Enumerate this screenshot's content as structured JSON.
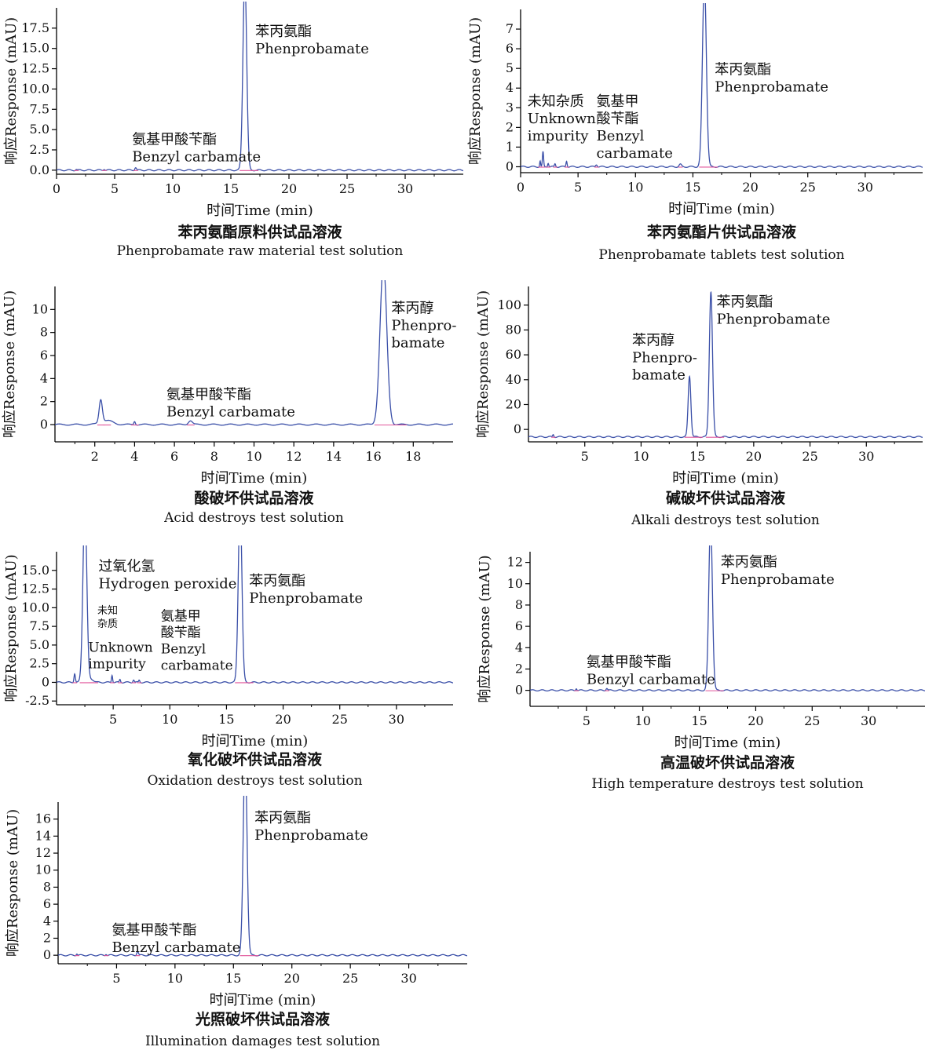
{
  "chart_data": [
    {
      "type": "line",
      "title": "苯丙氨酯原料供试品溶液",
      "subtitle": "Phenprobamate raw material test solution",
      "xlabel": "时间Time (min)",
      "ylabel": "响应Response (mAU)",
      "xlim": [
        0,
        35
      ],
      "ylim": [
        -0.5,
        20
      ],
      "xticks": [
        0,
        5,
        10,
        15,
        20,
        25,
        30
      ],
      "xtick_labels": [
        "0",
        "5",
        "10",
        "15",
        "20",
        "25",
        "30"
      ],
      "yticks": [
        0,
        2.5,
        5,
        7.5,
        10,
        12.5,
        15,
        17.5
      ],
      "ytick_labels": [
        "0.0",
        "2.5",
        "5.0",
        "7.5",
        "10.0",
        "12.5",
        "15.0",
        "17.5"
      ],
      "baseline": 0,
      "peaks": [
        {
          "rt": 1.7,
          "height": 0.1,
          "width": 0.05
        },
        {
          "rt": 4.1,
          "height": 0.15,
          "width": 0.06
        },
        {
          "rt": 6.8,
          "height": 0.35,
          "width": 0.07
        },
        {
          "rt": 16.2,
          "height": 24,
          "width": 0.16
        }
      ],
      "annotations": [
        {
          "x": 6.5,
          "y": 3.2,
          "lines": [
            "氨基甲酸苄酯",
            "Benzyl carbamate"
          ]
        },
        {
          "x": 17.1,
          "y": 16.5,
          "lines": [
            "苯丙氨酯",
            "Phenprobamate"
          ]
        }
      ]
    },
    {
      "type": "line",
      "title": "苯丙氨酯片供试品溶液",
      "subtitle": "Phenprobamate tablets test solution",
      "xlabel": "时间Time (min)",
      "ylabel": "响应Response (mAU)",
      "xlim": [
        0,
        35
      ],
      "ylim": [
        -0.3,
        8
      ],
      "xticks": [
        0,
        5,
        10,
        15,
        20,
        25,
        30
      ],
      "xtick_labels": [
        "0",
        "5",
        "10",
        "15",
        "20",
        "25",
        "30"
      ],
      "yticks": [
        0,
        1,
        2,
        3,
        4,
        5,
        6,
        7
      ],
      "ytick_labels": [
        "0",
        "1",
        "2",
        "3",
        "4",
        "5",
        "6",
        "7"
      ],
      "baseline": 0,
      "peaks": [
        {
          "rt": 1.7,
          "height": 0.3,
          "width": 0.04
        },
        {
          "rt": 1.95,
          "height": 0.75,
          "width": 0.05
        },
        {
          "rt": 2.4,
          "height": 0.2,
          "width": 0.05
        },
        {
          "rt": 3.0,
          "height": 0.15,
          "width": 0.05
        },
        {
          "rt": 4.0,
          "height": 0.3,
          "width": 0.05
        },
        {
          "rt": 6.6,
          "height": 0.12,
          "width": 0.07
        },
        {
          "rt": 13.9,
          "height": 0.12,
          "width": 0.1
        },
        {
          "rt": 16.0,
          "height": 9.5,
          "width": 0.17
        }
      ],
      "annotations": [
        {
          "x": 0.6,
          "y": 3.1,
          "lines": [
            "未知杂质",
            "Unknown",
            "impurity"
          ]
        },
        {
          "x": 6.6,
          "y": 3.1,
          "lines": [
            "氨基甲",
            "酸苄酯",
            "Benzyl",
            "carbamate"
          ]
        },
        {
          "x": 16.9,
          "y": 4.7,
          "lines": [
            "苯丙氨酯",
            "Phenprobamate"
          ]
        }
      ]
    },
    {
      "type": "line",
      "title": "酸破坏供试品溶液",
      "subtitle": "Acid destroys test solution",
      "xlabel": "时间Time (min)",
      "ylabel": "响应Response (mAU)",
      "xlim": [
        0,
        20
      ],
      "ylim": [
        -1.5,
        12
      ],
      "xticks": [
        2,
        4,
        6,
        8,
        10,
        12,
        14,
        16,
        18
      ],
      "xtick_labels": [
        "2",
        "4",
        "6",
        "8",
        "10",
        "12",
        "14",
        "16",
        "18"
      ],
      "yticks": [
        0,
        2,
        4,
        6,
        8,
        10
      ],
      "ytick_labels": [
        "0",
        "2",
        "4",
        "6",
        "8",
        "10"
      ],
      "baseline": 0,
      "peaks": [
        {
          "rt": 2.3,
          "height": 2.0,
          "width": 0.08
        },
        {
          "rt": 2.6,
          "height": 0.35,
          "width": 0.3
        },
        {
          "rt": 4.0,
          "height": 0.3,
          "width": 0.04
        },
        {
          "rt": 6.8,
          "height": 0.35,
          "width": 0.1
        },
        {
          "rt": 16.5,
          "height": 14,
          "width": 0.17
        }
      ],
      "annotations": [
        {
          "x": 5.6,
          "y": 2.2,
          "lines": [
            "氨基甲酸苄酯",
            "Benzyl carbamate"
          ]
        },
        {
          "x": 16.9,
          "y": 9.7,
          "lines": [
            "苯丙醇",
            "Phenpro-",
            "bamate"
          ]
        }
      ]
    },
    {
      "type": "line",
      "title": "碱破坏供试品溶液",
      "subtitle": "Alkali destroys  test solution",
      "xlabel": "时间Time (min)",
      "ylabel": "响应Response (mAU)",
      "xlim": [
        0,
        35
      ],
      "ylim": [
        -10,
        115
      ],
      "xticks": [
        5,
        10,
        15,
        20,
        25,
        30
      ],
      "xtick_labels": [
        "5",
        "10",
        "15",
        "20",
        "25",
        "30"
      ],
      "yticks": [
        0,
        20,
        40,
        60,
        80,
        100
      ],
      "ytick_labels": [
        "0",
        "20",
        "40",
        "60",
        "80",
        "100"
      ],
      "baseline": -6,
      "peaks": [
        {
          "rt": 2.2,
          "height": 2.0,
          "width": 0.05
        },
        {
          "rt": 14.3,
          "height": 49,
          "width": 0.12
        },
        {
          "rt": 16.2,
          "height": 117,
          "width": 0.14
        }
      ],
      "annotations": [
        {
          "x": 9.2,
          "y": 68,
          "lines": [
            "苯丙醇",
            "Phenpro-",
            "bamate"
          ]
        },
        {
          "x": 16.7,
          "y": 99,
          "lines": [
            "苯丙氨酯",
            "Phenprobamate"
          ]
        }
      ]
    },
    {
      "type": "line",
      "title": "氧化破坏供试品溶液",
      "subtitle": "Oxidation destroys  test solution",
      "xlabel": "时间Time (min)",
      "ylabel": "响应Response (mAU)",
      "xlim": [
        0,
        35
      ],
      "ylim": [
        -3,
        17.5
      ],
      "xticks": [
        5,
        10,
        15,
        20,
        25,
        30
      ],
      "xtick_labels": [
        "5",
        "10",
        "15",
        "20",
        "25",
        "30"
      ],
      "yticks": [
        -2.5,
        0,
        2.5,
        5,
        7.5,
        10,
        12.5,
        15
      ],
      "ytick_labels": [
        "-2.5",
        "0",
        "2.5",
        "5.0",
        "7.5",
        "10.0",
        "12.5",
        "15.0"
      ],
      "baseline": 0,
      "peaks": [
        {
          "rt": 1.6,
          "height": 1.2,
          "width": 0.06
        },
        {
          "rt": 2.5,
          "height": 24,
          "width": 0.17
        },
        {
          "rt": 3.1,
          "height": 0.4,
          "width": 0.2
        },
        {
          "rt": 4.9,
          "height": 1.0,
          "width": 0.05
        },
        {
          "rt": 5.6,
          "height": 0.4,
          "width": 0.05
        },
        {
          "rt": 6.8,
          "height": 0.35,
          "width": 0.06
        },
        {
          "rt": 7.3,
          "height": 0.3,
          "width": 0.05
        },
        {
          "rt": 16.2,
          "height": 24,
          "width": 0.16
        }
      ],
      "annotations": [
        {
          "x": 3.7,
          "y": 14.9,
          "lines": [
            "过氧化氢",
            "Hydrogen peroxide"
          ],
          "size": 18
        },
        {
          "x": 3.6,
          "y": 9.2,
          "lines": [
            "未知",
            "杂质"
          ],
          "size": 13
        },
        {
          "x": 2.8,
          "y": 4.1,
          "lines": [
            "Unknown",
            "impurity"
          ],
          "size": 17
        },
        {
          "x": 9.2,
          "y": 8.3,
          "lines": [
            "氨基甲",
            "酸苄酯",
            "Benzyl",
            "carbamate"
          ],
          "size": 17
        },
        {
          "x": 17.0,
          "y": 13.0,
          "lines": [
            "苯丙氨酯",
            "Phenprobamate"
          ],
          "size": 18
        }
      ]
    },
    {
      "type": "line",
      "title": "高温破坏供试品溶液",
      "subtitle": "High temperature destroys test solution",
      "xlabel": "时间Time (min)",
      "ylabel": "响应Response (mAU)",
      "xlim": [
        0,
        35
      ],
      "ylim": [
        -1.5,
        13
      ],
      "xticks": [
        5,
        10,
        15,
        20,
        25,
        30
      ],
      "xtick_labels": [
        "5",
        "10",
        "15",
        "20",
        "25",
        "30"
      ],
      "yticks": [
        0,
        2,
        4,
        6,
        8,
        10,
        12
      ],
      "ytick_labels": [
        "0",
        "2",
        "4",
        "6",
        "8",
        "10",
        "12"
      ],
      "baseline": 0,
      "peaks": [
        {
          "rt": 4.1,
          "height": 0.2,
          "width": 0.05
        },
        {
          "rt": 6.8,
          "height": 0.2,
          "width": 0.07
        },
        {
          "rt": 16.0,
          "height": 16,
          "width": 0.16
        }
      ],
      "annotations": [
        {
          "x": 5.0,
          "y": 2.2,
          "lines": [
            "氨基甲酸苄酯",
            "Benzyl carbamate"
          ]
        },
        {
          "x": 16.9,
          "y": 11.6,
          "lines": [
            "苯丙氨酯",
            "Phenprobamate"
          ]
        }
      ]
    },
    {
      "type": "line",
      "title": "光照破坏供试品溶液",
      "subtitle": "Illumination damages test solution",
      "xlabel": "时间Time (min)",
      "ylabel": "响应Response (mAU)",
      "xlim": [
        0,
        35
      ],
      "ylim": [
        -1,
        18
      ],
      "xticks": [
        5,
        10,
        15,
        20,
        25,
        30
      ],
      "xtick_labels": [
        "5",
        "10",
        "15",
        "20",
        "25",
        "30"
      ],
      "yticks": [
        0,
        2,
        4,
        6,
        8,
        10,
        12,
        14,
        16
      ],
      "ytick_labels": [
        "0",
        "2",
        "4",
        "6",
        "8",
        "10",
        "12",
        "14",
        "16"
      ],
      "baseline": 0,
      "peaks": [
        {
          "rt": 1.6,
          "height": 0.2,
          "width": 0.05
        },
        {
          "rt": 4.1,
          "height": 0.15,
          "width": 0.05
        },
        {
          "rt": 6.8,
          "height": 0.5,
          "width": 0.07
        },
        {
          "rt": 16.0,
          "height": 24,
          "width": 0.16
        }
      ],
      "annotations": [
        {
          "x": 4.6,
          "y": 2.4,
          "lines": [
            "氨基甲酸苄酯",
            "Benzyl carbamate"
          ]
        },
        {
          "x": 16.8,
          "y": 15.6,
          "lines": [
            "苯丙氨酯",
            "Phenprobamate"
          ]
        }
      ]
    }
  ]
}
